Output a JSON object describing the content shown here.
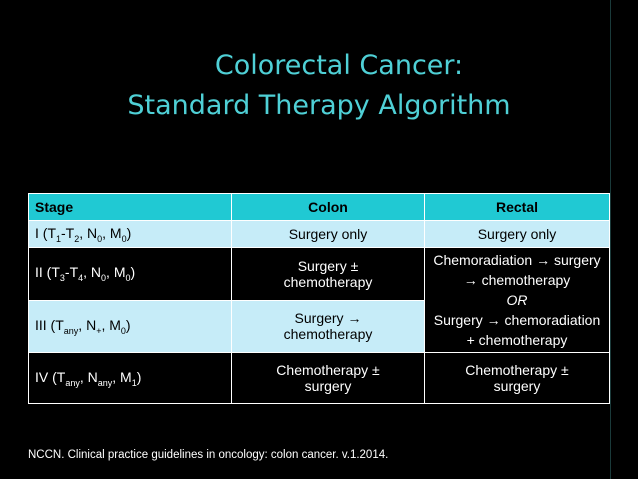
{
  "title": {
    "line1": "Colorectal Cancer:",
    "line2": "Standard Therapy Algorithm"
  },
  "table": {
    "headers": [
      "Stage",
      "Colon",
      "Rectal"
    ],
    "rows": [
      {
        "stage": {
          "main": "I (T",
          "s1": "1",
          "m2": "-T",
          "s2": "2",
          "m3": ", N",
          "s3": "0",
          "m4": ", M",
          "s4": "0",
          "m5": ")"
        },
        "colon": [
          "Surgery only"
        ],
        "rectal": [
          "Surgery only"
        ]
      },
      {
        "stage": {
          "main": "II (T",
          "s1": "3",
          "m2": "-T",
          "s2": "4",
          "m3": ", N",
          "s3": "0",
          "m4": ", M",
          "s4": "0",
          "m5": ")"
        },
        "colon": [
          "Surgery ±",
          "chemotherapy"
        ]
      },
      {
        "stage": {
          "main": "III (T",
          "s1": "any",
          "m2": ", N",
          "s2": "+",
          "m3": ", M",
          "s3": "0",
          "m4": ")"
        },
        "colon": [
          "Surgery →",
          "chemotherapy"
        ]
      },
      {
        "stage": {
          "main": "IV (T",
          "s1": "any",
          "m2": ", N",
          "s2": "any",
          "m3": ", M",
          "s3": "1",
          "m4": ")"
        },
        "colon": [
          "Chemotherapy ±",
          "surgery"
        ],
        "rectal": [
          "Chemotherapy ±",
          "surgery"
        ]
      }
    ],
    "rectal_merged": {
      "line1": "Chemoradiation → surgery",
      "line2": "→ chemotherapy",
      "or": "OR",
      "line3": "Surgery → chemoradiation",
      "line4": "+ chemotherapy"
    }
  },
  "citation": "NCCN. Clinical practice guidelines in oncology: colon cancer. v.1.2014.",
  "colors": {
    "background": "#000000",
    "title": "#4fd0d6",
    "header": "#20c9d3",
    "light_row": "#c6ecf8"
  }
}
